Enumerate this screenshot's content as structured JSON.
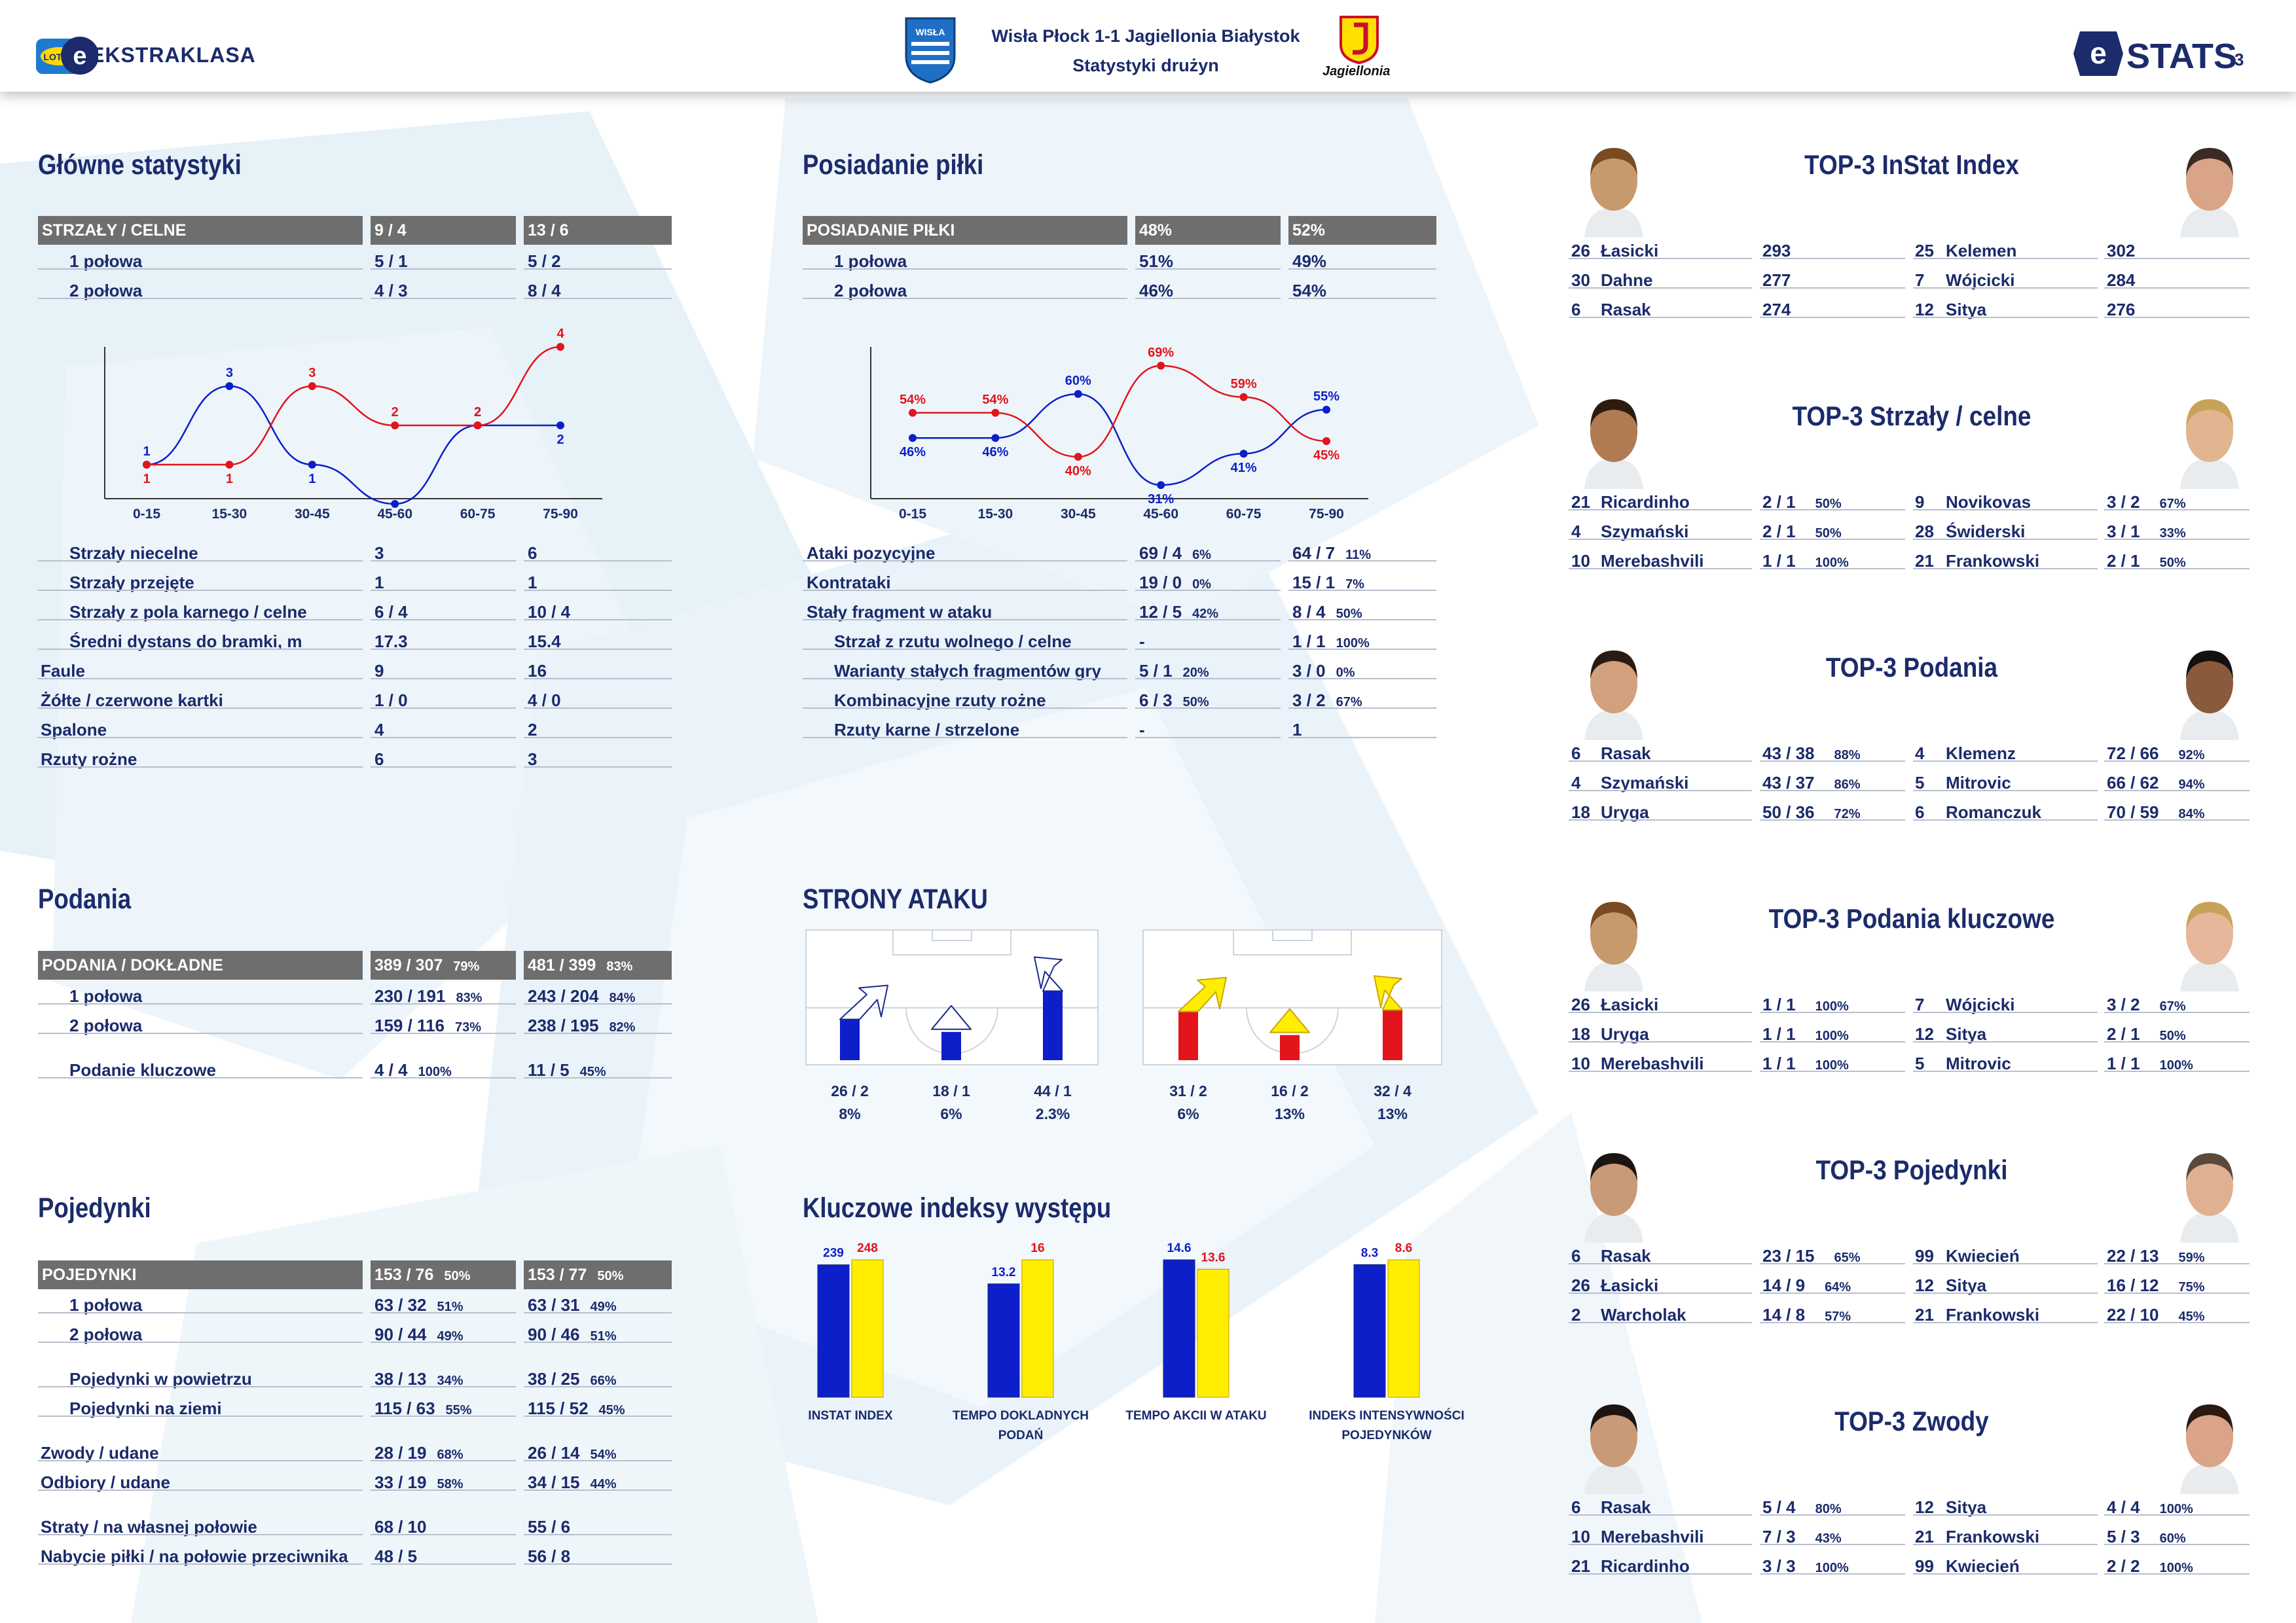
{
  "header": {
    "line1": "Wisła Płock 1-1 Jagiellonia Białystok",
    "line2": "Statystyki drużyn",
    "brand": "EKSTRAKLASA",
    "lotto": "LOTTO",
    "stats": "STATS",
    "page": "3",
    "jag_caption": "Jagiellonia",
    "wisla_caption": "WISŁA"
  },
  "colors": {
    "home": "#0d1fc8",
    "away": "#e3141b",
    "away_fill": "#ffee00",
    "navy": "#1b2b6b",
    "header_bg": "#6e6e6e"
  },
  "glowne": {
    "title": "Główne statystyki",
    "head": {
      "label": "STRZAŁY / CELNE",
      "home": "9 / 4",
      "away": "13 / 6"
    },
    "halves": [
      {
        "label": "1 połowa",
        "home": "5 / 1",
        "away": "5 / 2"
      },
      {
        "label": "2 połowa",
        "home": "4 / 3",
        "away": "8 / 4"
      }
    ],
    "rows": [
      {
        "label": "Strzały niecelne",
        "home": "3",
        "away": "6",
        "indent": true
      },
      {
        "label": "Strzały przejęte",
        "home": "1",
        "away": "1",
        "indent": true
      },
      {
        "label": "Strzały z pola karnego / celne",
        "home": "6 / 4",
        "away": "10 / 4",
        "indent": true
      },
      {
        "label": "Średni dystans do bramki, m",
        "home": "17.3",
        "away": "15.4",
        "indent": true
      },
      {
        "label": "Faule",
        "home": "9",
        "away": "16",
        "indent": false
      },
      {
        "label": "Żółte / czerwone kartki",
        "home": "1 / 0",
        "away": "4 / 0",
        "indent": false
      },
      {
        "label": "Spalone",
        "home": "4",
        "away": "2",
        "indent": false
      },
      {
        "label": "Rzuty rożne",
        "home": "6",
        "away": "3",
        "indent": false
      }
    ]
  },
  "posiadanie": {
    "title": "Posiadanie piłki",
    "head": {
      "label": "POSIADANIE PIŁKI",
      "home": "48%",
      "away": "52%"
    },
    "halves": [
      {
        "label": "1 połowa",
        "home": "51%",
        "away": "49%"
      },
      {
        "label": "2 połowa",
        "home": "46%",
        "away": "54%"
      }
    ],
    "rows": [
      {
        "label": "Ataki pozycyjne",
        "home": "69 / 4",
        "home_pct": "6%",
        "away": "64 / 7",
        "away_pct": "11%",
        "indent": false
      },
      {
        "label": "Kontrataki",
        "home": "19 / 0",
        "home_pct": "0%",
        "away": "15 / 1",
        "away_pct": "7%",
        "indent": false
      },
      {
        "label": "Stały fragment w ataku",
        "home": "12 / 5",
        "home_pct": "42%",
        "away": "8 / 4",
        "away_pct": "50%",
        "indent": false
      },
      {
        "label": "Strzał z rzutu wolnego / celne",
        "home": "-",
        "home_pct": "",
        "away": "1 / 1",
        "away_pct": "100%",
        "indent": true
      },
      {
        "label": "Warianty stałych fragmentów gry",
        "home": "5 / 1",
        "home_pct": "20%",
        "away": "3 / 0",
        "away_pct": "0%",
        "indent": true
      },
      {
        "label": "Kombinacyjne rzuty rożne",
        "home": "6 / 3",
        "home_pct": "50%",
        "away": "3 / 2",
        "away_pct": "67%",
        "indent": true
      },
      {
        "label": "Rzuty karne / strzelone",
        "home": "-",
        "home_pct": "",
        "away": "1",
        "away_pct": "",
        "indent": true
      }
    ]
  },
  "podania": {
    "title": "Podania",
    "head": {
      "label": "PODANIA / DOKŁADNE",
      "home": "389 / 307",
      "home_pct": "79%",
      "away": "481 / 399",
      "away_pct": "83%"
    },
    "rows": [
      {
        "label": "1 połowa",
        "home": "230 / 191",
        "home_pct": "83%",
        "away": "243 / 204",
        "away_pct": "84%"
      },
      {
        "label": "2 połowa",
        "home": "159 / 116",
        "home_pct": "73%",
        "away": "238 / 195",
        "away_pct": "82%"
      },
      {
        "label": "Podanie kluczowe",
        "home": "4 / 4",
        "home_pct": "100%",
        "away": "11 / 5",
        "away_pct": "45%"
      }
    ]
  },
  "pojedynki": {
    "title": "Pojedynki",
    "head": {
      "label": "POJEDYNKI",
      "home": "153 / 76",
      "home_pct": "50%",
      "away": "153 / 77",
      "away_pct": "50%"
    },
    "rows": [
      {
        "label": "1 połowa",
        "home": "63 / 32",
        "home_pct": "51%",
        "away": "63 / 31",
        "away_pct": "49%",
        "indent": true
      },
      {
        "label": "2 połowa",
        "home": "90 / 44",
        "home_pct": "49%",
        "away": "90 / 46",
        "away_pct": "51%",
        "indent": true
      },
      {
        "label": "Pojedynki w powietrzu",
        "home": "38 / 13",
        "home_pct": "34%",
        "away": "38 / 25",
        "away_pct": "66%",
        "indent": true
      },
      {
        "label": "Pojedynki na ziemi",
        "home": "115 / 63",
        "home_pct": "55%",
        "away": "115 / 52",
        "away_pct": "45%",
        "indent": true
      },
      {
        "label": "Zwody / udane",
        "home": "28 / 19",
        "home_pct": "68%",
        "away": "26 / 14",
        "away_pct": "54%",
        "indent": false
      },
      {
        "label": "Odbiory / udane",
        "home": "33 / 19",
        "home_pct": "58%",
        "away": "34 / 15",
        "away_pct": "44%",
        "indent": false
      },
      {
        "label": "Straty / na własnej połowie",
        "home": "68 / 10",
        "home_pct": "",
        "away": "55 / 6",
        "away_pct": "",
        "indent": false
      },
      {
        "label": "Nabycie piłki / na połowie przeciwnika",
        "home": "48 / 5",
        "home_pct": "",
        "away": "56 / 8",
        "away_pct": "",
        "indent": false
      }
    ]
  },
  "strony": {
    "title": "STRONY ATAKU",
    "home": [
      {
        "value": "26 / 2",
        "pct": "8%"
      },
      {
        "value": "18 / 1",
        "pct": "6%"
      },
      {
        "value": "44 / 1",
        "pct": "2.3%"
      }
    ],
    "away": [
      {
        "value": "31 / 2",
        "pct": "6%"
      },
      {
        "value": "16 / 2",
        "pct": "13%"
      },
      {
        "value": "32 / 4",
        "pct": "13%"
      }
    ]
  },
  "kluczowe": {
    "title": "Kluczowe indeksy występu",
    "groups": [
      {
        "label1": "INSTAT INDEX",
        "label2": "",
        "home": "239",
        "away": "248"
      },
      {
        "label1": "TEMPO DOKLADNYCH",
        "label2": "PODAŃ",
        "home": "13.2",
        "away": "16"
      },
      {
        "label1": "TEMPO AKCII W ATAKU",
        "label2": "",
        "home": "14.6",
        "away": "13.6"
      },
      {
        "label1": "INDEKS INTENSYWNOŚCI",
        "label2": "POJEDYNKÓW",
        "home": "8.3",
        "away": "8.6"
      }
    ]
  },
  "chart_data": [
    {
      "type": "line",
      "title": "",
      "x": [
        "0-15",
        "15-30",
        "30-45",
        "45-60",
        "60-75",
        "75-90"
      ],
      "series": [
        {
          "values": [
            1,
            3,
            1,
            0,
            2,
            2
          ]
        },
        {
          "values": [
            1,
            1,
            3,
            2,
            2,
            4
          ]
        }
      ],
      "labels": [
        [
          "1",
          "3",
          "1",
          "",
          "2",
          "2"
        ],
        [
          "1",
          "1",
          "3",
          "2",
          "2",
          "4"
        ]
      ],
      "ylim": [
        0,
        4
      ]
    },
    {
      "type": "line",
      "title": "",
      "x": [
        "0-15",
        "15-30",
        "30-45",
        "45-60",
        "60-75",
        "75-90"
      ],
      "series": [
        {
          "values": [
            46,
            46,
            60,
            31,
            41,
            55
          ]
        },
        {
          "values": [
            54,
            54,
            40,
            69,
            59,
            45
          ]
        }
      ],
      "labels": [
        [
          "46%",
          "46%",
          "60%",
          "31%",
          "41%",
          "55%"
        ],
        [
          "54%",
          "54%",
          "40%",
          "69%",
          "59%",
          "45%"
        ]
      ],
      "ylim": [
        25,
        75
      ]
    },
    {
      "type": "bar",
      "title": "",
      "categories": [
        "INSTAT INDEX",
        "TEMPO DOKLADNYCH PODAŃ",
        "TEMPO AKCII W ATAKU",
        "INDEKS INTENSYWNOŚCI POJEDYNKÓW"
      ],
      "series": [
        {
          "values": [
            239,
            13.2,
            14.6,
            8.3
          ]
        },
        {
          "values": [
            248,
            16,
            13.6,
            8.6
          ]
        }
      ]
    },
    {
      "type": "bar",
      "title": "",
      "categories": [
        "26 / 2",
        "18 / 1",
        "44 / 1"
      ],
      "series": [
        {
          "values": [
            26,
            18,
            44
          ]
        }
      ]
    },
    {
      "type": "bar",
      "title": "",
      "categories": [
        "31 / 2",
        "16 / 2",
        "32 / 4"
      ],
      "series": [
        {
          "values": [
            31,
            16,
            32
          ]
        }
      ]
    }
  ],
  "top": [
    {
      "title": "TOP-3 InStat Index",
      "home": [
        {
          "num": "26",
          "name": "Łasicki",
          "val": "293",
          "pct": ""
        },
        {
          "num": "30",
          "name": "Dahne",
          "val": "277",
          "pct": ""
        },
        {
          "num": "6",
          "name": "Rasak",
          "val": "274",
          "pct": ""
        }
      ],
      "away": [
        {
          "num": "25",
          "name": "Kelemen",
          "val": "302",
          "pct": ""
        },
        {
          "num": "7",
          "name": "Wójcicki",
          "val": "284",
          "pct": ""
        },
        {
          "num": "12",
          "name": "Sitya",
          "val": "276",
          "pct": ""
        }
      ]
    },
    {
      "title": "TOP-3 Strzały / celne",
      "home": [
        {
          "num": "21",
          "name": "Ricardinho",
          "val": "2 / 1",
          "pct": "50%"
        },
        {
          "num": "4",
          "name": "Szymański",
          "val": "2 / 1",
          "pct": "50%"
        },
        {
          "num": "10",
          "name": "Merebashvili",
          "val": "1 / 1",
          "pct": "100%"
        }
      ],
      "away": [
        {
          "num": "9",
          "name": "Novikovas",
          "val": "3 / 2",
          "pct": "67%"
        },
        {
          "num": "28",
          "name": "Świderski",
          "val": "3 / 1",
          "pct": "33%"
        },
        {
          "num": "21",
          "name": "Frankowski",
          "val": "2 / 1",
          "pct": "50%"
        }
      ]
    },
    {
      "title": "TOP-3 Podania",
      "home": [
        {
          "num": "6",
          "name": "Rasak",
          "val": "43 / 38",
          "pct": "88%"
        },
        {
          "num": "4",
          "name": "Szymański",
          "val": "43 / 37",
          "pct": "86%"
        },
        {
          "num": "18",
          "name": "Uryga",
          "val": "50 / 36",
          "pct": "72%"
        }
      ],
      "away": [
        {
          "num": "4",
          "name": "Klemenz",
          "val": "72 / 66",
          "pct": "92%"
        },
        {
          "num": "5",
          "name": "Mitrovic",
          "val": "66 / 62",
          "pct": "94%"
        },
        {
          "num": "6",
          "name": "Romanczuk",
          "val": "70 / 59",
          "pct": "84%"
        }
      ]
    },
    {
      "title": "TOP-3 Podania kluczowe",
      "home": [
        {
          "num": "26",
          "name": "Łasicki",
          "val": "1 / 1",
          "pct": "100%"
        },
        {
          "num": "18",
          "name": "Uryga",
          "val": "1 / 1",
          "pct": "100%"
        },
        {
          "num": "10",
          "name": "Merebashvili",
          "val": "1 / 1",
          "pct": "100%"
        }
      ],
      "away": [
        {
          "num": "7",
          "name": "Wójcicki",
          "val": "3 / 2",
          "pct": "67%"
        },
        {
          "num": "12",
          "name": "Sitya",
          "val": "2 / 1",
          "pct": "50%"
        },
        {
          "num": "5",
          "name": "Mitrovic",
          "val": "1 / 1",
          "pct": "100%"
        }
      ]
    },
    {
      "title": "TOP-3 Pojedynki",
      "home": [
        {
          "num": "6",
          "name": "Rasak",
          "val": "23 / 15",
          "pct": "65%"
        },
        {
          "num": "26",
          "name": "Łasicki",
          "val": "14 / 9",
          "pct": "64%"
        },
        {
          "num": "2",
          "name": "Warcholak",
          "val": "14 / 8",
          "pct": "57%"
        }
      ],
      "away": [
        {
          "num": "99",
          "name": "Kwiecień",
          "val": "22 / 13",
          "pct": "59%"
        },
        {
          "num": "12",
          "name": "Sitya",
          "val": "16 / 12",
          "pct": "75%"
        },
        {
          "num": "21",
          "name": "Frankowski",
          "val": "22 / 10",
          "pct": "45%"
        }
      ]
    },
    {
      "title": "TOP-3 Zwody",
      "home": [
        {
          "num": "6",
          "name": "Rasak",
          "val": "5 / 4",
          "pct": "80%"
        },
        {
          "num": "10",
          "name": "Merebashvili",
          "val": "7 / 3",
          "pct": "43%"
        },
        {
          "num": "21",
          "name": "Ricardinho",
          "val": "3 / 3",
          "pct": "100%"
        }
      ],
      "away": [
        {
          "num": "12",
          "name": "Sitya",
          "val": "4 / 4",
          "pct": "100%"
        },
        {
          "num": "21",
          "name": "Frankowski",
          "val": "5 / 3",
          "pct": "60%"
        },
        {
          "num": "99",
          "name": "Kwiecień",
          "val": "2 / 2",
          "pct": "100%"
        }
      ]
    }
  ]
}
